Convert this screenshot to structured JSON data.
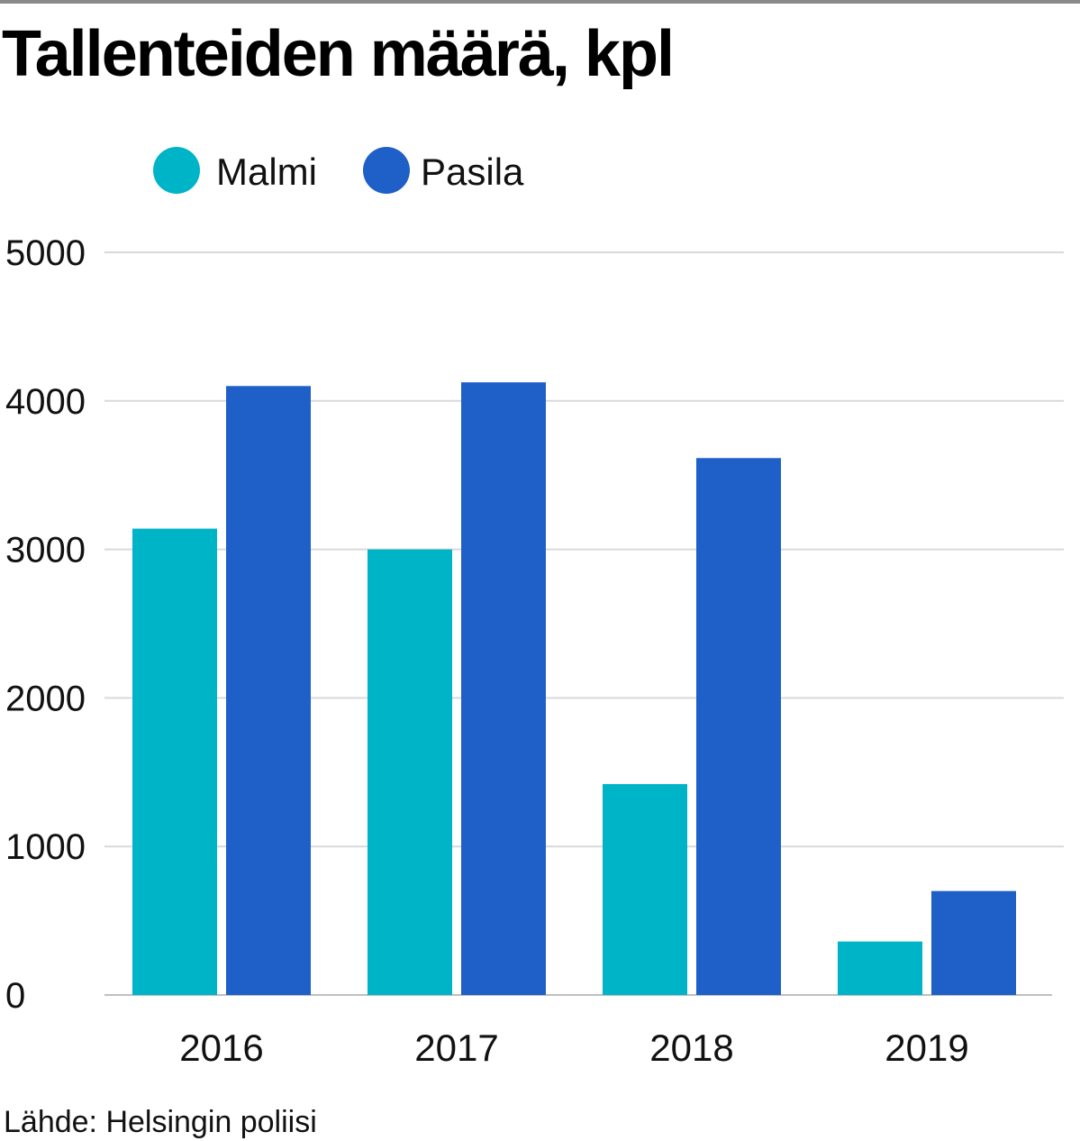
{
  "chart_data": {
    "type": "bar",
    "title": "Tallenteiden määrä, kpl",
    "categories": [
      "2016",
      "2017",
      "2018",
      "2019"
    ],
    "series": [
      {
        "name": "Malmi",
        "color": "#00B4C8",
        "values": [
          3140,
          3000,
          1420,
          360
        ]
      },
      {
        "name": "Pasila",
        "color": "#1E5FC8",
        "values": [
          4100,
          4125,
          3615,
          700
        ]
      }
    ],
    "yticks": [
      0,
      1000,
      2000,
      3000,
      4000,
      5000
    ],
    "ylim": [
      0,
      5000
    ],
    "xlabel": "",
    "ylabel": "",
    "legend_position": "top-left",
    "grid": true,
    "source": "Lähde: Helsingin poliisi"
  },
  "colors": {
    "grid": "#d9d9d9",
    "axis": "#bfbfbf",
    "text": "#111111"
  }
}
